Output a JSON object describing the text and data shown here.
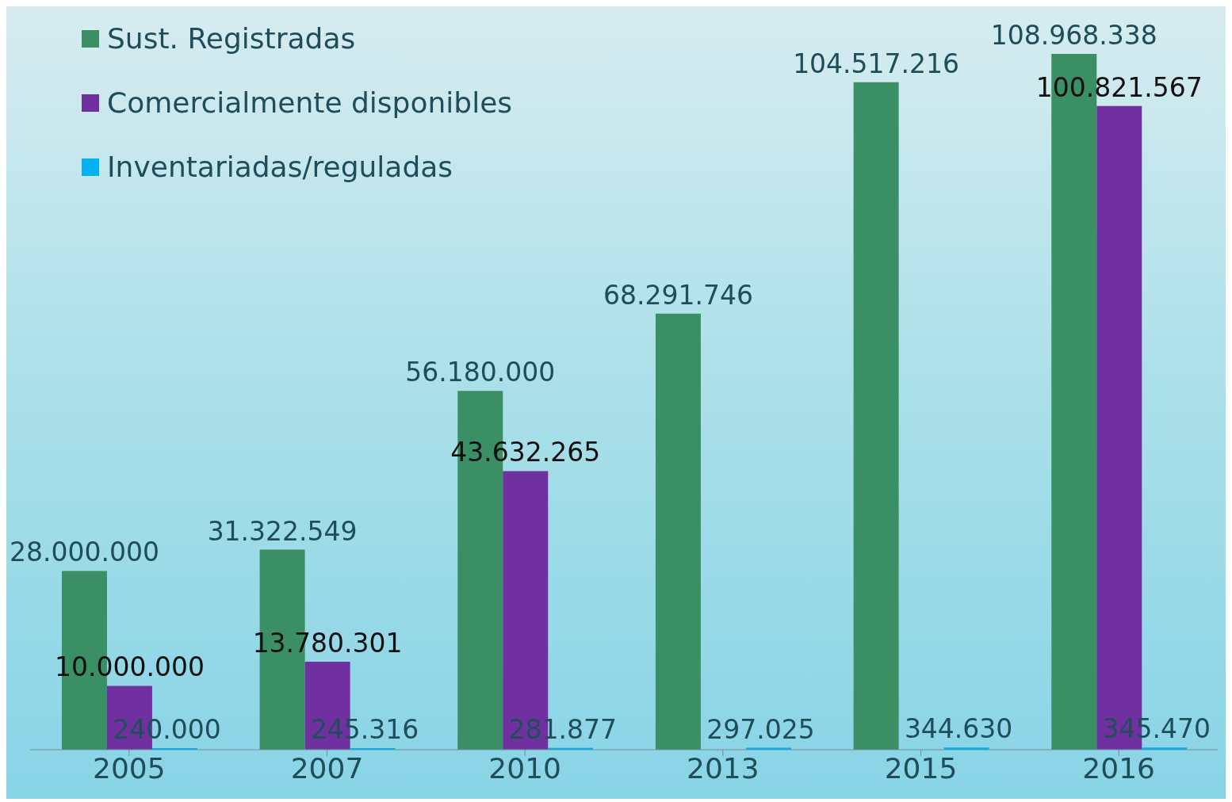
{
  "chart_data": {
    "type": "bar",
    "categories": [
      "2005",
      "2007",
      "2010",
      "2013",
      "2015",
      "2016"
    ],
    "series": [
      {
        "name": "Sust.  Registradas",
        "color": "#3a8f65",
        "values": [
          28000000,
          31322549,
          56180000,
          68291746,
          104517216,
          108968338
        ],
        "value_labels": [
          "28.000.000",
          "31.322.549",
          "56.180.000",
          "68.291.746",
          "104.517.216",
          "108.968.338"
        ]
      },
      {
        "name": "Comercialmente  disponibles",
        "color": "#7030a0",
        "values": [
          10000000,
          13780301,
          43632265,
          null,
          null,
          100821567
        ],
        "value_labels": [
          "10.000.000",
          "13.780.301",
          "43.632.265",
          null,
          null,
          "100.821.567"
        ]
      },
      {
        "name": "Inventariadas/reguladas",
        "color": "#00b0f0",
        "values": [
          240000,
          245316,
          281877,
          297025,
          344630,
          345470
        ],
        "value_labels": [
          "240.000",
          "245.316",
          "281.877",
          "297.025",
          "344.630",
          "345.470"
        ]
      }
    ],
    "legend": "top left",
    "grid": false
  }
}
